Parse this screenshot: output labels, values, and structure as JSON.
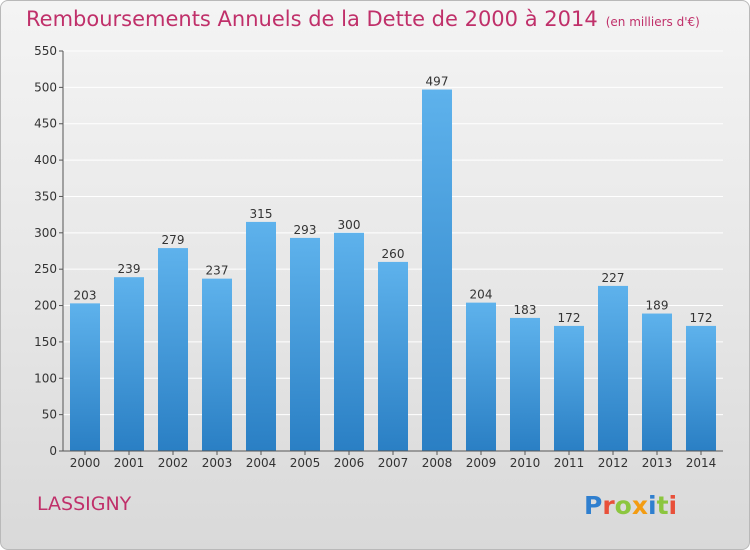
{
  "header": {
    "title": "Remboursements Annuels de la Dette de 2000 à 2014",
    "unit": "(en milliers d'€)"
  },
  "footer": {
    "commune": "LASSIGNY",
    "logo_text": "Proxiti"
  },
  "colors": {
    "title": "#c0306a",
    "bar_top": "#5eb2ec",
    "bar_bottom": "#2a7fc4",
    "logo": [
      "#2f7fcf",
      "#e8503a",
      "#8cc63f",
      "#f39c12",
      "#2f7fcf",
      "#8cc63f",
      "#e8503a"
    ]
  },
  "chart_data": {
    "type": "bar",
    "title": "Remboursements Annuels de la Dette de 2000 à 2014",
    "xlabel": "",
    "ylabel": "",
    "categories": [
      "2000",
      "2001",
      "2002",
      "2003",
      "2004",
      "2005",
      "2006",
      "2007",
      "2008",
      "2009",
      "2010",
      "2011",
      "2012",
      "2013",
      "2014"
    ],
    "values": [
      203,
      239,
      279,
      237,
      315,
      293,
      300,
      260,
      497,
      204,
      183,
      172,
      227,
      189,
      172
    ],
    "ylim": [
      0,
      550
    ],
    "yticks": [
      0,
      50,
      100,
      150,
      200,
      250,
      300,
      350,
      400,
      450,
      500,
      550
    ],
    "grid": true,
    "legend": "none"
  }
}
